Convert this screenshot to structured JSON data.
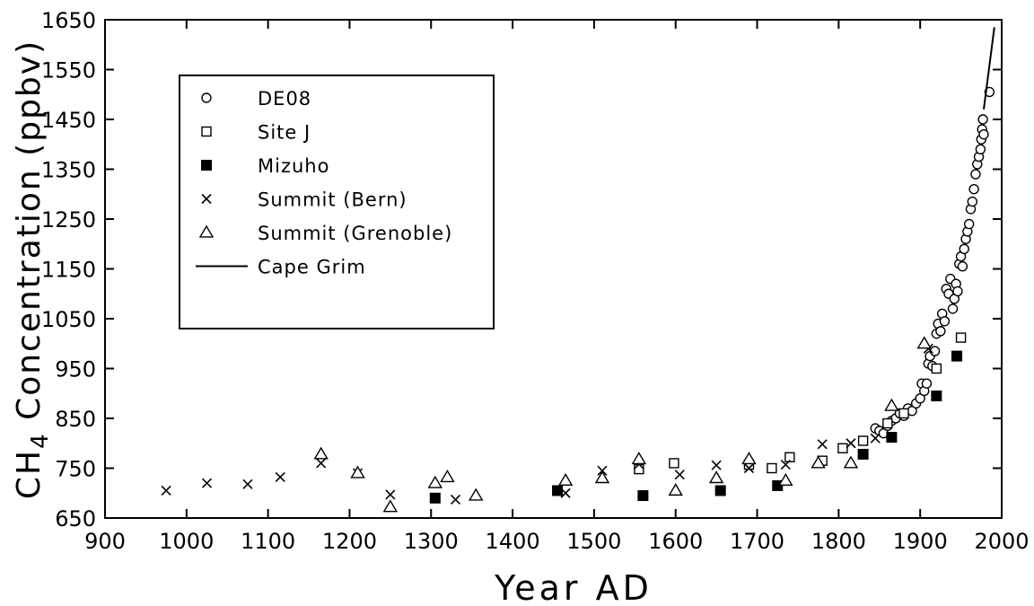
{
  "chart_data": {
    "type": "scatter",
    "title": "",
    "xlabel": "Year AD",
    "ylabel_main": "CH",
    "ylabel_sub": "4",
    "ylabel_rest": " Concentration (ppbv)",
    "xlim": [
      900,
      2000
    ],
    "ylim": [
      650,
      1650
    ],
    "x_ticks": [
      900,
      1000,
      1100,
      1200,
      1300,
      1400,
      1500,
      1600,
      1700,
      1800,
      1900,
      2000
    ],
    "y_ticks": [
      650,
      750,
      850,
      950,
      1050,
      1150,
      1250,
      1350,
      1450,
      1550,
      1650
    ],
    "grid": false,
    "legend_position": "top-left",
    "series": [
      {
        "name": "DE08",
        "marker": "circle-open",
        "points": [
          [
            1845,
            830
          ],
          [
            1850,
            825
          ],
          [
            1855,
            820
          ],
          [
            1860,
            835
          ],
          [
            1865,
            845
          ],
          [
            1870,
            850
          ],
          [
            1875,
            860
          ],
          [
            1880,
            855
          ],
          [
            1885,
            870
          ],
          [
            1890,
            865
          ],
          [
            1895,
            880
          ],
          [
            1900,
            890
          ],
          [
            1902,
            920
          ],
          [
            1905,
            905
          ],
          [
            1908,
            920
          ],
          [
            1910,
            960
          ],
          [
            1912,
            975
          ],
          [
            1915,
            955
          ],
          [
            1918,
            985
          ],
          [
            1920,
            1020
          ],
          [
            1922,
            1040
          ],
          [
            1925,
            1025
          ],
          [
            1927,
            1060
          ],
          [
            1930,
            1045
          ],
          [
            1932,
            1110
          ],
          [
            1935,
            1100
          ],
          [
            1937,
            1130
          ],
          [
            1940,
            1070
          ],
          [
            1942,
            1090
          ],
          [
            1944,
            1120
          ],
          [
            1946,
            1105
          ],
          [
            1948,
            1160
          ],
          [
            1950,
            1175
          ],
          [
            1952,
            1155
          ],
          [
            1954,
            1190
          ],
          [
            1956,
            1210
          ],
          [
            1958,
            1225
          ],
          [
            1960,
            1240
          ],
          [
            1962,
            1270
          ],
          [
            1964,
            1285
          ],
          [
            1966,
            1310
          ],
          [
            1968,
            1340
          ],
          [
            1970,
            1360
          ],
          [
            1972,
            1375
          ],
          [
            1974,
            1390
          ],
          [
            1975,
            1410
          ],
          [
            1976,
            1430
          ],
          [
            1977,
            1450
          ],
          [
            1978,
            1420
          ],
          [
            1985,
            1505
          ]
        ]
      },
      {
        "name": "Site J",
        "marker": "square-open",
        "points": [
          [
            1555,
            748
          ],
          [
            1598,
            760
          ],
          [
            1690,
            757
          ],
          [
            1718,
            750
          ],
          [
            1740,
            772
          ],
          [
            1780,
            765
          ],
          [
            1805,
            790
          ],
          [
            1830,
            805
          ],
          [
            1860,
            840
          ],
          [
            1880,
            860
          ],
          [
            1920,
            950
          ],
          [
            1950,
            1012
          ]
        ]
      },
      {
        "name": "Mizuho",
        "marker": "square-filled",
        "points": [
          [
            1305,
            690
          ],
          [
            1455,
            705
          ],
          [
            1560,
            695
          ],
          [
            1655,
            705
          ],
          [
            1725,
            715
          ],
          [
            1830,
            778
          ],
          [
            1865,
            812
          ],
          [
            1920,
            895
          ],
          [
            1945,
            975
          ]
        ]
      },
      {
        "name": "Summit (Bern)",
        "marker": "cross",
        "points": [
          [
            975,
            705
          ],
          [
            1025,
            720
          ],
          [
            1075,
            718
          ],
          [
            1115,
            732
          ],
          [
            1165,
            760
          ],
          [
            1210,
            740
          ],
          [
            1250,
            697
          ],
          [
            1330,
            687
          ],
          [
            1465,
            700
          ],
          [
            1510,
            745
          ],
          [
            1555,
            758
          ],
          [
            1605,
            737
          ],
          [
            1650,
            756
          ],
          [
            1690,
            750
          ],
          [
            1735,
            757
          ],
          [
            1780,
            798
          ],
          [
            1815,
            800
          ],
          [
            1845,
            810
          ],
          [
            1910,
            990
          ]
        ]
      },
      {
        "name": "Summit (Grenoble)",
        "marker": "triangle-open",
        "points": [
          [
            1165,
            778
          ],
          [
            1210,
            740
          ],
          [
            1250,
            672
          ],
          [
            1305,
            720
          ],
          [
            1320,
            732
          ],
          [
            1355,
            695
          ],
          [
            1465,
            725
          ],
          [
            1510,
            730
          ],
          [
            1555,
            768
          ],
          [
            1600,
            705
          ],
          [
            1650,
            730
          ],
          [
            1690,
            768
          ],
          [
            1735,
            725
          ],
          [
            1775,
            760
          ],
          [
            1815,
            760
          ],
          [
            1865,
            875
          ],
          [
            1905,
            1000
          ]
        ]
      },
      {
        "name": "Cape Grim",
        "marker": "line",
        "points": [
          [
            1978,
            1470
          ],
          [
            1991,
            1635
          ]
        ]
      }
    ]
  }
}
